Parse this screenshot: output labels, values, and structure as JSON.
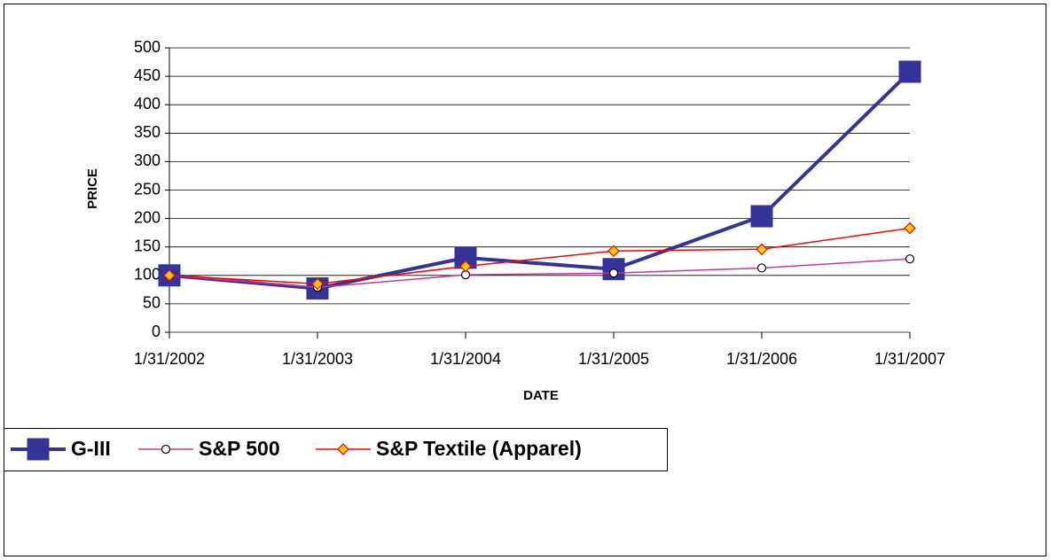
{
  "chart_data": {
    "type": "line",
    "xlabel": "DATE",
    "ylabel": "PRICE",
    "categories": [
      "1/31/2002",
      "1/31/2003",
      "1/31/2004",
      "1/31/2005",
      "1/31/2006",
      "1/31/2007"
    ],
    "series": [
      {
        "name": "G-III",
        "color": "#333399",
        "values": [
          100,
          77,
          131,
          111,
          204,
          458
        ]
      },
      {
        "name": "S&P 500",
        "color": "#cc3399",
        "values": [
          100,
          79,
          101,
          104,
          113,
          129
        ]
      },
      {
        "name": "S&P Textile (Apparel)",
        "color": "#ff0000",
        "values": [
          100,
          85,
          116,
          143,
          146,
          183
        ]
      }
    ],
    "ylim": [
      0,
      500
    ],
    "yticks": [
      0,
      50,
      100,
      150,
      200,
      250,
      300,
      350,
      400,
      450,
      500
    ],
    "grid": true
  }
}
